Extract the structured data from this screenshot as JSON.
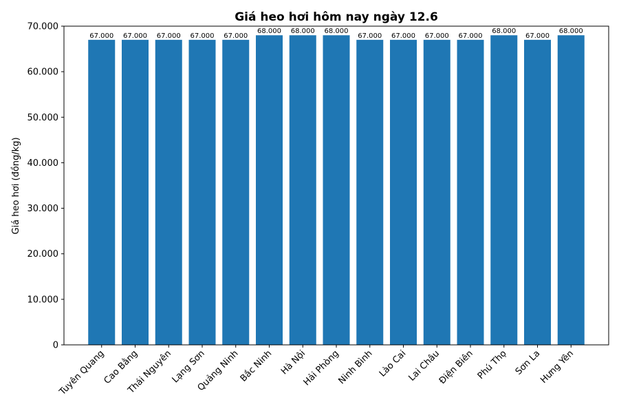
{
  "chart_data": {
    "type": "bar",
    "title": "Giá heo hơi hôm nay ngày 12.6",
    "xlabel": "",
    "ylabel": "Giá heo hơi (đồng/kg)",
    "ylim": [
      0,
      70000
    ],
    "yticks": [
      0,
      10000,
      20000,
      30000,
      40000,
      50000,
      60000,
      70000
    ],
    "ytick_labels": [
      "0",
      "10.000",
      "20.000",
      "30.000",
      "40.000",
      "50.000",
      "60.000",
      "70.000"
    ],
    "categories": [
      "Tuyên Quang",
      "Cao Bằng",
      "Thái Nguyên",
      "Lạng Sơn",
      "Quảng Ninh",
      "Bắc Ninh",
      "Hà Nội",
      "Hải Phòng",
      "Ninh Bình",
      "Lào Cai",
      "Lai Châu",
      "Điện Biên",
      "Phú Thọ",
      "Sơn La",
      "Hưng Yên"
    ],
    "values": [
      67000,
      67000,
      67000,
      67000,
      67000,
      68000,
      68000,
      68000,
      67000,
      67000,
      67000,
      67000,
      68000,
      67000,
      68000
    ],
    "value_labels": [
      "67.000",
      "67.000",
      "67.000",
      "67.000",
      "67.000",
      "68.000",
      "68.000",
      "68.000",
      "67.000",
      "67.000",
      "67.000",
      "67.000",
      "68.000",
      "67.000",
      "68.000"
    ],
    "bar_color": "#1f77b4",
    "grid": false,
    "legend": "none"
  }
}
